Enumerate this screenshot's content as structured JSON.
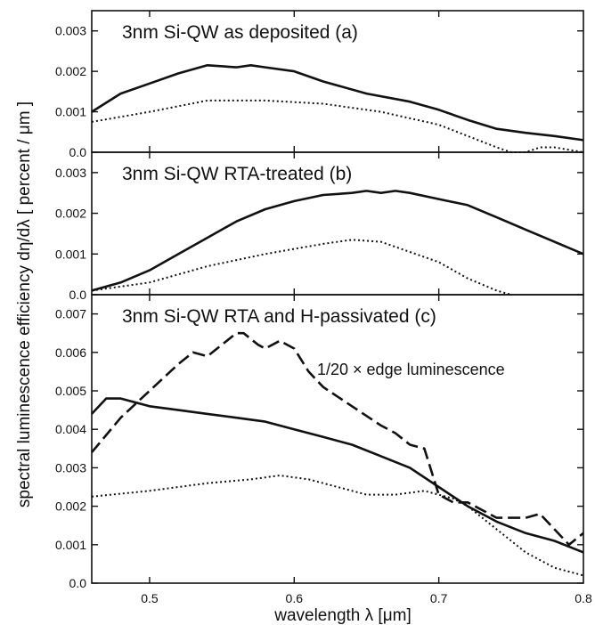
{
  "chart_data": [
    {
      "type": "line",
      "title": "3nm  Si-QW   as deposited (a)",
      "xlim": [
        0.46,
        0.8
      ],
      "ylim": [
        0,
        0.0035
      ],
      "yticks": [
        "0.0",
        "0.001",
        "0.002",
        "0.003"
      ],
      "series": [
        {
          "style": "solid",
          "x": [
            0.46,
            0.48,
            0.5,
            0.52,
            0.54,
            0.56,
            0.57,
            0.58,
            0.6,
            0.62,
            0.65,
            0.68,
            0.7,
            0.72,
            0.74,
            0.76,
            0.78,
            0.8
          ],
          "y": [
            0.001,
            0.00145,
            0.0017,
            0.00195,
            0.00215,
            0.0021,
            0.00215,
            0.0021,
            0.002,
            0.00175,
            0.00145,
            0.00125,
            0.00105,
            0.0008,
            0.00058,
            0.00048,
            0.0004,
            0.0003
          ]
        },
        {
          "style": "dotted",
          "x": [
            0.46,
            0.5,
            0.54,
            0.58,
            0.62,
            0.66,
            0.7,
            0.72,
            0.74,
            0.75,
            0.76,
            0.77,
            0.78,
            0.8
          ],
          "y": [
            0.00075,
            0.001,
            0.00128,
            0.00128,
            0.0012,
            0.001,
            0.00068,
            0.0004,
            0.00012,
            0.0,
            0.0,
            0.00012,
            0.00012,
            0.0
          ]
        }
      ]
    },
    {
      "type": "line",
      "title": "3nm  Si-QW   RTA-treated (b)",
      "xlim": [
        0.46,
        0.8
      ],
      "ylim": [
        0,
        0.0035
      ],
      "yticks": [
        "0.0",
        "0.001",
        "0.002",
        "0.003"
      ],
      "series": [
        {
          "style": "solid",
          "x": [
            0.46,
            0.48,
            0.5,
            0.52,
            0.54,
            0.56,
            0.58,
            0.6,
            0.62,
            0.64,
            0.65,
            0.66,
            0.67,
            0.68,
            0.7,
            0.72,
            0.74,
            0.76,
            0.78,
            0.8
          ],
          "y": [
            0.0001,
            0.0003,
            0.0006,
            0.001,
            0.0014,
            0.0018,
            0.0021,
            0.0023,
            0.00245,
            0.0025,
            0.00255,
            0.0025,
            0.00255,
            0.0025,
            0.00235,
            0.0022,
            0.0019,
            0.0016,
            0.0013,
            0.001
          ]
        },
        {
          "style": "dotted",
          "x": [
            0.46,
            0.5,
            0.54,
            0.58,
            0.62,
            0.64,
            0.66,
            0.68,
            0.7,
            0.72,
            0.74,
            0.75
          ],
          "y": [
            0.0001,
            0.0003,
            0.0007,
            0.001,
            0.00125,
            0.00135,
            0.0013,
            0.00105,
            0.0008,
            0.0004,
            0.0001,
            0.0
          ]
        }
      ]
    },
    {
      "type": "line",
      "title": "3nm  Si-QW   RTA and H-passivated (c)",
      "xlim": [
        0.46,
        0.8
      ],
      "ylim": [
        0,
        0.0075
      ],
      "yticks": [
        "0.0",
        "0.001",
        "0.002",
        "0.003",
        "0.004",
        "0.005",
        "0.006",
        "0.007"
      ],
      "xticks": [
        "0.5",
        "0.6",
        "0.7",
        "0.8"
      ],
      "xlabel": "wavelength λ [μm]",
      "annotation": "1/20  ×  edge luminescence",
      "series": [
        {
          "style": "solid",
          "x": [
            0.46,
            0.47,
            0.48,
            0.5,
            0.52,
            0.54,
            0.56,
            0.58,
            0.6,
            0.62,
            0.64,
            0.66,
            0.68,
            0.7,
            0.72,
            0.74,
            0.76,
            0.78,
            0.8
          ],
          "y": [
            0.0044,
            0.0048,
            0.0048,
            0.0046,
            0.0045,
            0.0044,
            0.0043,
            0.0042,
            0.004,
            0.0038,
            0.0036,
            0.0033,
            0.003,
            0.0025,
            0.002,
            0.0016,
            0.0013,
            0.0011,
            0.0008
          ]
        },
        {
          "style": "dotted",
          "x": [
            0.46,
            0.5,
            0.54,
            0.57,
            0.59,
            0.61,
            0.63,
            0.65,
            0.67,
            0.69,
            0.71,
            0.72,
            0.74,
            0.76,
            0.78,
            0.8
          ],
          "y": [
            0.00225,
            0.0024,
            0.0026,
            0.0027,
            0.0028,
            0.0027,
            0.0025,
            0.0023,
            0.0023,
            0.0024,
            0.0022,
            0.002,
            0.0014,
            0.0008,
            0.0004,
            0.0002
          ]
        },
        {
          "style": "dashed",
          "x": [
            0.46,
            0.48,
            0.5,
            0.52,
            0.53,
            0.54,
            0.55,
            0.56,
            0.565,
            0.575,
            0.58,
            0.59,
            0.6,
            0.61,
            0.62,
            0.64,
            0.66,
            0.67,
            0.68,
            0.69,
            0.7,
            0.71,
            0.72,
            0.74,
            0.76,
            0.77,
            0.78,
            0.79,
            0.8
          ],
          "y": [
            0.0034,
            0.0043,
            0.005,
            0.0057,
            0.006,
            0.0059,
            0.0062,
            0.0065,
            0.0065,
            0.0062,
            0.0061,
            0.0063,
            0.0061,
            0.0055,
            0.0051,
            0.0046,
            0.0041,
            0.0039,
            0.0036,
            0.0035,
            0.0023,
            0.0021,
            0.0021,
            0.0017,
            0.0017,
            0.0018,
            0.0014,
            0.001,
            0.0013
          ]
        }
      ]
    }
  ],
  "ylabel": "spectral luminescence efficiency  dη/dλ  [ percent / μm ]"
}
